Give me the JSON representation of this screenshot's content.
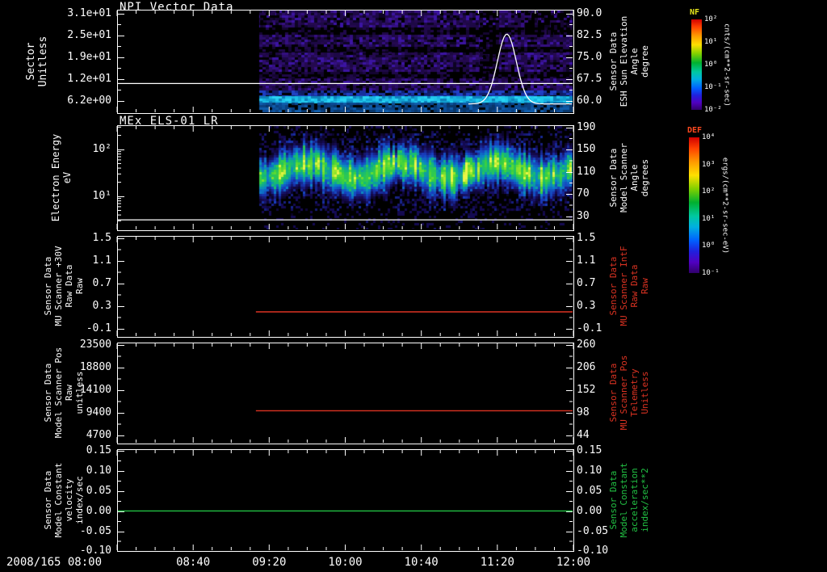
{
  "x_axis": {
    "date": "2008/165",
    "first_tick_label": "2008/165 08:00",
    "tick_labels": [
      "08:00",
      "08:40",
      "09:20",
      "10:00",
      "10:40",
      "11:20",
      "12:00"
    ]
  },
  "panels": [
    {
      "title": "NPI Vector Data",
      "left_label_lines": [
        "Sector",
        "Unitless"
      ],
      "left_tick_labels": [
        "3.1e+01",
        "2.5e+01",
        "1.9e+01",
        "1.2e+01",
        "6.2e+00"
      ],
      "right_tick_labels": [
        "90.0",
        "82.5",
        "75.0",
        "67.5",
        "60.0"
      ],
      "right_label_lines": [
        "Sensor Data",
        "ESH Sun Elevation",
        "Angle",
        "degree"
      ],
      "right_label_color": "#ffffff"
    },
    {
      "title": "MEx ELS-01 LR",
      "left_label_lines": [
        "Electron Energy",
        "eV"
      ],
      "left_tick_labels": [
        "10²",
        "10¹"
      ],
      "right_tick_labels": [
        "190",
        "150",
        "110",
        "70",
        "30"
      ],
      "right_label_lines": [
        "Sensor Data",
        "Model Scanner",
        "Angle",
        "degrees"
      ],
      "right_label_color": "#ffffff"
    },
    {
      "title": "",
      "left_label_lines": [
        "Sensor Data",
        "MU Scanner +30V",
        "Raw Data",
        "Raw"
      ],
      "left_tick_labels": [
        "1.5",
        "1.1",
        "0.7",
        "0.3",
        "-0.1"
      ],
      "right_tick_labels": [
        "1.5",
        "1.1",
        "0.7",
        "0.3",
        "-0.1"
      ],
      "right_label_lines": [
        "Sensor Data",
        "MU Scanner IntF",
        "Raw Data",
        "Raw"
      ],
      "right_label_color": "#dd3322"
    },
    {
      "title": "",
      "left_label_lines": [
        "Sensor Data",
        "Model Scanner Pos",
        "Raw",
        "unitless"
      ],
      "left_tick_labels": [
        "23500",
        "18800",
        "14100",
        "9400",
        "4700"
      ],
      "right_tick_labels": [
        "260",
        "206",
        "152",
        "98",
        "44"
      ],
      "right_label_lines": [
        "Sensor Data",
        "MU Scanner Pos",
        "Telemetry",
        "Unitless"
      ],
      "right_label_color": "#dd3322"
    },
    {
      "title": "",
      "left_label_lines": [
        "Sensor Data",
        "Model Constant",
        "velocity",
        "index/sec"
      ],
      "left_tick_labels": [
        "0.15",
        "0.10",
        "0.05",
        "0.00",
        "-0.05",
        "-0.10"
      ],
      "right_tick_labels": [
        "0.15",
        "0.10",
        "0.05",
        "0.00",
        "-0.05",
        "-0.10"
      ],
      "right_label_lines": [
        "Sensor Data",
        "Model Constant",
        "acceleration",
        "index/sec**2"
      ],
      "right_label_color": "#22c244"
    }
  ],
  "colorbars": [
    {
      "name": "NF",
      "name_color": "#e8e61c",
      "tick_labels": [
        "10²",
        "10¹",
        "10⁰",
        "10⁻¹",
        "10⁻²"
      ],
      "units": "cnts/(cm**2-sr-sec)"
    },
    {
      "name": "DEF",
      "name_color": "#ff4a20",
      "tick_labels": [
        "10⁴",
        "10³",
        "10²",
        "10¹",
        "10⁰",
        "10⁻¹"
      ],
      "units": "ergs/(cm**2-sr-sec-eV)"
    }
  ],
  "chart_data": [
    {
      "type": "heatmap",
      "title": "NPI Vector Data",
      "ylabel": "Sector Unitless",
      "y_ticks": [
        "3.1e+01",
        "2.5e+01",
        "1.9e+01",
        "1.2e+01",
        "6.2e+00"
      ],
      "right_axis": {
        "label": "Sensor Data ESH Sun Elevation Angle degree",
        "ticks": [
          90.0,
          82.5,
          75.0,
          67.5,
          60.0
        ]
      },
      "x_range": [
        "2008/165 08:00",
        "2008/165 12:00"
      ],
      "x_tick_labels": [
        "08:00",
        "08:40",
        "09:20",
        "10:00",
        "10:40",
        "11:20",
        "12:00"
      ],
      "data_interval": [
        "09:15",
        "12:00"
      ],
      "colorbar": {
        "label": "NF",
        "units": "cnts/(cm**2-sr-sec)",
        "scale": "log"
      },
      "content": "Noisy violet/indigo sector spectrogram with black horizontal dropout bands and a bright cyan/blue band near the bottom sectors; no data before 09:15",
      "overlays": [
        {
          "type": "hline",
          "color": "#ffffff",
          "sun_elevation_value": 66
        },
        {
          "type": "peak_curve",
          "color": "#ffffff",
          "center_time": "11:25",
          "baseline_sun_elevation": 59,
          "peak_sun_elevation": 83,
          "sigma_minutes": 5
        }
      ]
    },
    {
      "type": "heatmap",
      "title": "MEx ELS-01 LR",
      "ylabel": "Electron Energy eV",
      "yscale": "log",
      "y_ticks": [
        "10²",
        "10¹"
      ],
      "right_axis": {
        "label": "Sensor Data Model Scanner Angle degrees",
        "ticks": [
          190,
          150,
          110,
          70,
          30
        ]
      },
      "x_range": [
        "08:00",
        "12:00"
      ],
      "data_interval": [
        "09:15",
        "12:00"
      ],
      "colorbar": {
        "label": "DEF",
        "units": "ergs/(cm**2-sr-sec-eV)",
        "scale": "log"
      },
      "content": "Electron energy-time spectrogram: bright green/cyan flux band centered near 10-40 eV with variable burst intensity; sparse dark-blue speckle elsewhere",
      "overlays": [
        {
          "type": "hline",
          "color": "#ffffff",
          "scanner_angle_value": 24
        }
      ]
    },
    {
      "type": "line",
      "left_axis": {
        "label": "Sensor Data MU Scanner +30V Raw Data Raw",
        "ticks": [
          1.5,
          1.1,
          0.7,
          0.3,
          -0.1
        ]
      },
      "right_axis": {
        "label": "Sensor Data MU Scanner IntF Raw Data Raw",
        "ticks": [
          1.5,
          1.1,
          0.7,
          0.3,
          -0.1
        ]
      },
      "series": [
        {
          "name": "MU Scanner IntF Raw",
          "color": "#dd3322",
          "segment": [
            "09:13",
            "12:00"
          ],
          "constant_value": 0.2
        }
      ]
    },
    {
      "type": "line",
      "left_axis": {
        "label": "Sensor Data Model Scanner Pos Raw unitless",
        "ticks": [
          23500,
          18800,
          14100,
          9400,
          4700
        ]
      },
      "right_axis": {
        "label": "Sensor Data MU Scanner Pos Telemetry Unitless",
        "ticks": [
          260,
          206,
          152,
          98,
          44
        ]
      },
      "series": [
        {
          "name": "MU Scanner Pos Telemetry",
          "color": "#dd3322",
          "segment": [
            "09:13",
            "12:00"
          ],
          "constant_value_right_scale": 103,
          "constant_value_left_scale": 9900
        }
      ]
    },
    {
      "type": "line",
      "left_axis": {
        "label": "Sensor Data Model Constant velocity index/sec",
        "ticks": [
          0.15,
          0.1,
          0.05,
          0.0,
          -0.05,
          -0.1
        ]
      },
      "right_axis": {
        "label": "Sensor Data Model Constant acceleration index/sec**2",
        "ticks": [
          0.15,
          0.1,
          0.05,
          0.0,
          -0.05,
          -0.1
        ]
      },
      "series": [
        {
          "name": "Model Constant",
          "color": "#22c244",
          "segment": [
            "08:00",
            "12:00"
          ],
          "constant_value": 0.0
        }
      ]
    }
  ]
}
